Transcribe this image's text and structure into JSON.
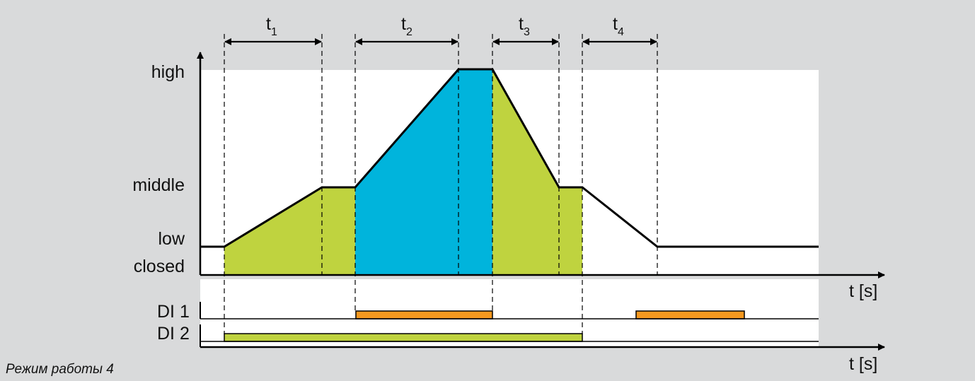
{
  "colors": {
    "background": "#d9dadb",
    "plot_area": "#ffffff",
    "ramp_fill": "#bfd33f",
    "high_fill": "#00b4dc",
    "di1_bar": "#f5981f",
    "di2_bar": "#bfd33f",
    "line": "#000000"
  },
  "levels": {
    "high": "high",
    "middle": "middle",
    "low": "low",
    "closed": "closed"
  },
  "intervals": [
    {
      "base": "t",
      "sub": "1"
    },
    {
      "base": "t",
      "sub": "2"
    },
    {
      "base": "t",
      "sub": "3"
    },
    {
      "base": "t",
      "sub": "4"
    }
  ],
  "axis_label_top": "t [s]",
  "axis_label_bottom": "t [s]",
  "inputs": {
    "di1": "DI 1",
    "di2": "DI 2"
  },
  "caption": "Режим работы 4"
}
